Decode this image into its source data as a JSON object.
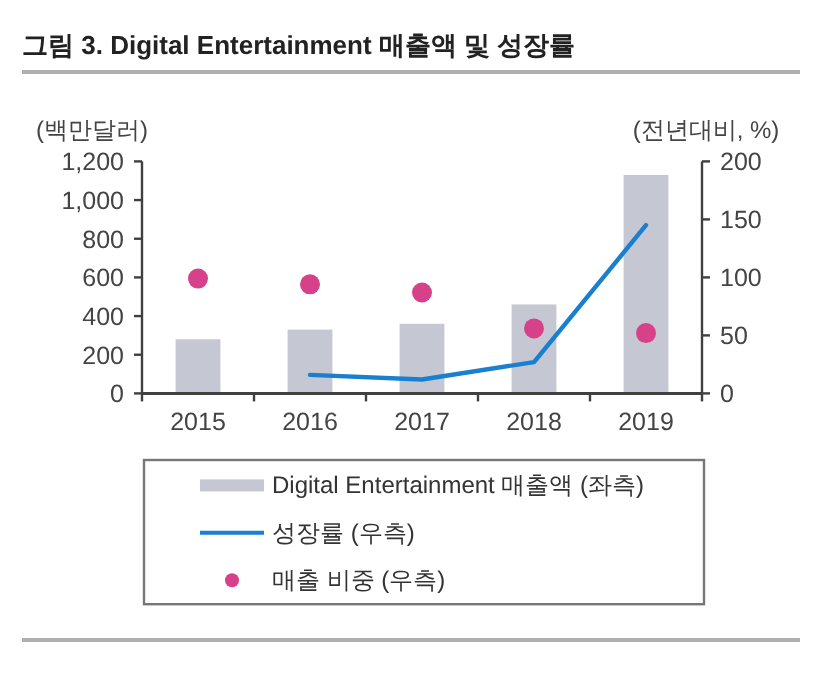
{
  "chart_data": {
    "type": "bar",
    "title": "그림 3. Digital Entertainment 매출액 및 성장률",
    "ylabel": "(백만달러)",
    "y2label": "(전년대비, %)",
    "categories": [
      "2015",
      "2016",
      "2017",
      "2018",
      "2019"
    ],
    "series": [
      {
        "name": "Digital Entertainment 매출액 (좌측)",
        "color": "#c5c7d2",
        "values": [
          280,
          330,
          360,
          460,
          1130
        ]
      },
      {
        "name": "성장률 (우측)",
        "type": "line",
        "axis": "y2",
        "color": "#1a7fcf",
        "values": [
          null,
          16,
          12,
          27,
          145
        ]
      },
      {
        "name": "매출 비중 (우측)",
        "type": "scatter",
        "axis": "y2",
        "color": "#d6418a",
        "marker": "circle",
        "values": [
          99,
          94,
          87,
          56,
          52
        ]
      }
    ],
    "ylim": [
      0,
      1200
    ],
    "yticks": [
      0,
      200,
      400,
      600,
      800,
      {
        "value": 1000,
        "label": "1,000"
      },
      {
        "value": 1200,
        "label": "1,200"
      }
    ],
    "y2lim": [
      0,
      200
    ],
    "y2ticks": [
      0,
      50,
      100,
      150,
      200
    ],
    "legend": "bottom"
  }
}
